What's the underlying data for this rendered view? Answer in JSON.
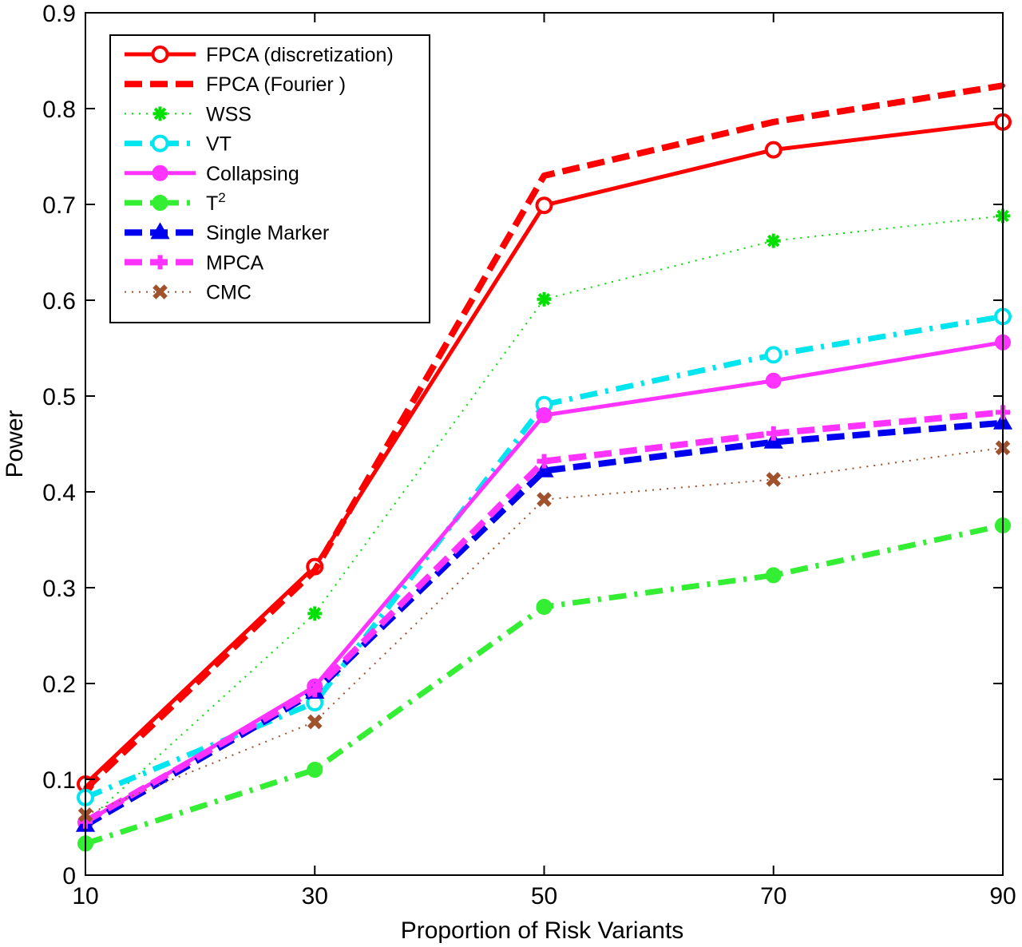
{
  "chart_data": {
    "type": "line",
    "title": "",
    "xlabel": "Proportion of Risk Variants",
    "ylabel": "Power",
    "xlim": [
      10,
      90
    ],
    "ylim": [
      0,
      0.9
    ],
    "x": [
      10,
      30,
      50,
      70,
      90
    ],
    "xticks": [
      10,
      30,
      50,
      70,
      90
    ],
    "xtick_labels": [
      "10",
      "30",
      "50",
      "70",
      "90"
    ],
    "yticks": [
      0,
      0.1,
      0.2,
      0.3,
      0.4,
      0.5,
      0.6,
      0.7,
      0.8,
      0.9
    ],
    "ytick_labels": [
      "0",
      "0.1",
      "0.2",
      "0.3",
      "0.4",
      "0.5",
      "0.6",
      "0.7",
      "0.8",
      "0.9"
    ],
    "grid": false,
    "legend_position": "top-left",
    "series": [
      {
        "name": "FPCA (discretization)",
        "label_main": "FPCA (discretization)",
        "label_sup": "",
        "values": [
          0.095,
          0.322,
          0.699,
          0.757,
          0.786
        ],
        "color": "#ff0000",
        "dash": "solid",
        "marker": "circle-open"
      },
      {
        "name": "FPCA (Fourier )",
        "label_main": "FPCA (Fourier )",
        "label_sup": "",
        "values": [
          0.09,
          0.318,
          0.73,
          0.786,
          0.824
        ],
        "color": "#ff0000",
        "dash": "dashed",
        "marker": "dot"
      },
      {
        "name": "WSS",
        "label_main": "WSS",
        "label_sup": "",
        "values": [
          0.055,
          0.273,
          0.601,
          0.662,
          0.688
        ],
        "color": "#00e000",
        "dash": "dotted",
        "marker": "star"
      },
      {
        "name": "VT",
        "label_main": "VT",
        "label_sup": "",
        "values": [
          0.081,
          0.18,
          0.491,
          0.543,
          0.583
        ],
        "color": "#00e5ee",
        "dash": "dashdot",
        "marker": "circle-open"
      },
      {
        "name": "Collapsing",
        "label_main": "Collapsing",
        "label_sup": "",
        "values": [
          0.055,
          0.197,
          0.48,
          0.516,
          0.556
        ],
        "color": "#ff33ff",
        "dash": "solid",
        "marker": "circle-filled"
      },
      {
        "name": "T2",
        "label_main": "T",
        "label_sup": "2",
        "values": [
          0.033,
          0.11,
          0.28,
          0.313,
          0.365
        ],
        "color": "#33ee33",
        "dash": "dashdot",
        "marker": "circle-filled"
      },
      {
        "name": "Single Marker",
        "label_main": "Single Marker",
        "label_sup": "",
        "values": [
          0.052,
          0.191,
          0.422,
          0.452,
          0.472
        ],
        "color": "#0000ee",
        "dash": "dashed",
        "marker": "triangle"
      },
      {
        "name": "MPCA",
        "label_main": "MPCA",
        "label_sup": "",
        "values": [
          0.056,
          0.193,
          0.432,
          0.461,
          0.483
        ],
        "color": "#ff33ff",
        "dash": "dashed",
        "marker": "plus"
      },
      {
        "name": "CMC",
        "label_main": "CMC",
        "label_sup": "",
        "values": [
          0.063,
          0.16,
          0.392,
          0.413,
          0.446
        ],
        "color": "#a0522d",
        "dash": "dotted",
        "marker": "x"
      }
    ]
  }
}
